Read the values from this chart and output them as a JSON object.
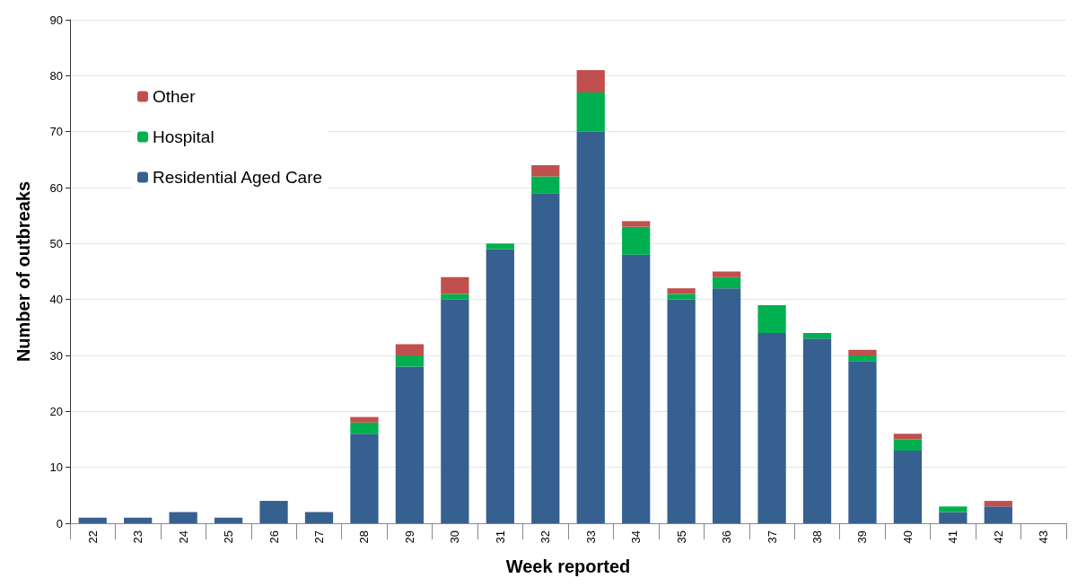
{
  "chart_data": {
    "type": "bar",
    "stacked": true,
    "xlabel": "Week reported",
    "ylabel": "Number of outbreaks",
    "categories": [
      "22",
      "23",
      "24",
      "25",
      "26",
      "27",
      "28",
      "29",
      "30",
      "31",
      "32",
      "33",
      "34",
      "35",
      "36",
      "37",
      "38",
      "39",
      "40",
      "41",
      "42",
      "43"
    ],
    "series": [
      {
        "name": "Residential Aged Care",
        "color": "#36608f",
        "values": [
          1,
          1,
          2,
          1,
          4,
          2,
          16,
          28,
          40,
          49,
          59,
          70,
          48,
          40,
          42,
          34,
          33,
          29,
          13,
          2,
          3,
          0
        ]
      },
      {
        "name": "Hospital",
        "color": "#00b050",
        "values": [
          0,
          0,
          0,
          0,
          0,
          0,
          2,
          2,
          1,
          1,
          3,
          7,
          5,
          1,
          2,
          5,
          1,
          1,
          2,
          1,
          0,
          0
        ]
      },
      {
        "name": "Other",
        "color": "#c0504d",
        "values": [
          0,
          0,
          0,
          0,
          0,
          0,
          1,
          2,
          3,
          0,
          2,
          4,
          1,
          1,
          1,
          0,
          0,
          1,
          1,
          0,
          1,
          0
        ]
      }
    ],
    "ylim": [
      0,
      90
    ],
    "yticks": [
      0,
      10,
      20,
      30,
      40,
      50,
      60,
      70,
      80,
      90
    ],
    "grid": "y",
    "legend": "top left"
  }
}
